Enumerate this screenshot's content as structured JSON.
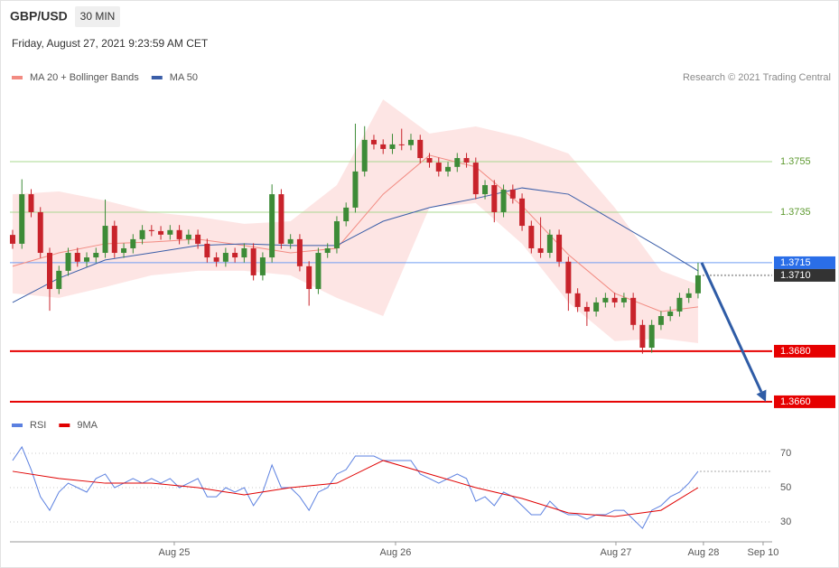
{
  "chart_data": [
    {
      "type": "candlestick",
      "title": "GBP/USD",
      "subtitle": "30 MIN",
      "timestamp": "Friday, August 27, 2021 9:23:59 AM CET",
      "credit": "Research © 2021 Trading Central",
      "up_color": "#3d8b37",
      "down_color": "#c8232b",
      "xlim": [
        -0.29,
        82.0
      ],
      "ylim": [
        1.36564,
        1.37957
      ],
      "xticks": [
        {
          "value": 17.45,
          "label": "Aug 25"
        },
        {
          "value": 41.34,
          "label": "Aug 26"
        },
        {
          "value": 65.13,
          "label": "Aug 27"
        },
        {
          "value": 74.58,
          "label": "Aug 28"
        },
        {
          "value": 81.02,
          "label": "Sep 10"
        }
      ],
      "candles": [
        [
          1.3726,
          1.3728,
          1.37205,
          1.37225
        ],
        [
          1.37225,
          1.3748,
          1.37205,
          1.37421
        ],
        [
          1.37421,
          1.37441,
          1.3733,
          1.3735
        ],
        [
          1.3735,
          1.3737,
          1.37169,
          1.37189
        ],
        [
          1.37189,
          1.37209,
          1.3696,
          1.37046
        ],
        [
          1.37046,
          1.37138,
          1.37026,
          1.37118
        ],
        [
          1.37118,
          1.37209,
          1.37098,
          1.37189
        ],
        [
          1.37189,
          1.37209,
          1.37134,
          1.37154
        ],
        [
          1.37154,
          1.37191,
          1.37134,
          1.37171
        ],
        [
          1.37171,
          1.37209,
          1.37151,
          1.37189
        ],
        [
          1.37189,
          1.374,
          1.37169,
          1.37296
        ],
        [
          1.37296,
          1.37316,
          1.37169,
          1.37189
        ],
        [
          1.37189,
          1.37227,
          1.37169,
          1.37207
        ],
        [
          1.37207,
          1.37263,
          1.37187,
          1.37243
        ],
        [
          1.37243,
          1.37299,
          1.37223,
          1.37279
        ],
        [
          1.37279,
          1.37299,
          1.37255,
          1.37275
        ],
        [
          1.37275,
          1.37295,
          1.37241,
          1.37261
        ],
        [
          1.37261,
          1.37299,
          1.37241,
          1.37279
        ],
        [
          1.37279,
          1.37299,
          1.37223,
          1.37243
        ],
        [
          1.37243,
          1.37281,
          1.37223,
          1.37261
        ],
        [
          1.37261,
          1.37281,
          1.37205,
          1.37225
        ],
        [
          1.37225,
          1.37245,
          1.37151,
          1.37171
        ],
        [
          1.37171,
          1.37191,
          1.37134,
          1.37154
        ],
        [
          1.37154,
          1.37209,
          1.37134,
          1.37189
        ],
        [
          1.37189,
          1.37209,
          1.37151,
          1.37171
        ],
        [
          1.37171,
          1.37227,
          1.37151,
          1.37207
        ],
        [
          1.37207,
          1.37227,
          1.3708,
          1.371
        ],
        [
          1.371,
          1.37191,
          1.3708,
          1.37171
        ],
        [
          1.37171,
          1.3746,
          1.37151,
          1.37421
        ],
        [
          1.37421,
          1.37441,
          1.37205,
          1.37225
        ],
        [
          1.37225,
          1.37263,
          1.37205,
          1.37243
        ],
        [
          1.37243,
          1.37263,
          1.37116,
          1.37136
        ],
        [
          1.37136,
          1.37156,
          1.3698,
          1.37046
        ],
        [
          1.37046,
          1.37209,
          1.37026,
          1.37189
        ],
        [
          1.37189,
          1.37227,
          1.37169,
          1.37207
        ],
        [
          1.37207,
          1.37334,
          1.37187,
          1.37314
        ],
        [
          1.37314,
          1.37388,
          1.37294,
          1.37368
        ],
        [
          1.37368,
          1.377,
          1.37348,
          1.37511
        ],
        [
          1.37511,
          1.3769,
          1.37491,
          1.37636
        ],
        [
          1.37636,
          1.37656,
          1.37598,
          1.37618
        ],
        [
          1.37618,
          1.37638,
          1.3758,
          1.376
        ],
        [
          1.376,
          1.3766,
          1.3758,
          1.37618
        ],
        [
          1.37618,
          1.3768,
          1.37595,
          1.37615
        ],
        [
          1.37615,
          1.3766,
          1.37595,
          1.37636
        ],
        [
          1.37636,
          1.37656,
          1.37544,
          1.37564
        ],
        [
          1.37564,
          1.37584,
          1.37526,
          1.37546
        ],
        [
          1.37546,
          1.37566,
          1.37491,
          1.37511
        ],
        [
          1.37511,
          1.37549,
          1.37491,
          1.37529
        ],
        [
          1.37529,
          1.37584,
          1.37509,
          1.37564
        ],
        [
          1.37564,
          1.37584,
          1.37526,
          1.37546
        ],
        [
          1.37546,
          1.37566,
          1.37401,
          1.37421
        ],
        [
          1.37421,
          1.37477,
          1.37401,
          1.37457
        ],
        [
          1.37457,
          1.37477,
          1.3731,
          1.3735
        ],
        [
          1.3735,
          1.37459,
          1.3733,
          1.37439
        ],
        [
          1.37439,
          1.37459,
          1.37384,
          1.37404
        ],
        [
          1.37404,
          1.37424,
          1.37276,
          1.37296
        ],
        [
          1.37296,
          1.37316,
          1.37187,
          1.37207
        ],
        [
          1.37207,
          1.3733,
          1.37169,
          1.37189
        ],
        [
          1.37189,
          1.37281,
          1.37169,
          1.37261
        ],
        [
          1.37261,
          1.37281,
          1.37134,
          1.37154
        ],
        [
          1.37154,
          1.37174,
          1.3696,
          1.37029
        ],
        [
          1.37029,
          1.37049,
          1.36955,
          1.36975
        ],
        [
          1.36975,
          1.36995,
          1.369,
          1.36957
        ],
        [
          1.36957,
          1.37013,
          1.36937,
          1.36993
        ],
        [
          1.36993,
          1.37031,
          1.36973,
          1.37011
        ],
        [
          1.37011,
          1.37031,
          1.36973,
          1.36993
        ],
        [
          1.36993,
          1.37031,
          1.36973,
          1.37011
        ],
        [
          1.37011,
          1.37031,
          1.36884,
          1.36904
        ],
        [
          1.36904,
          1.36924,
          1.3679,
          1.36814
        ],
        [
          1.36814,
          1.36924,
          1.36794,
          1.36904
        ],
        [
          1.36904,
          1.36959,
          1.36884,
          1.36939
        ],
        [
          1.36939,
          1.36977,
          1.36919,
          1.36957
        ],
        [
          1.36957,
          1.37031,
          1.36937,
          1.37011
        ],
        [
          1.37011,
          1.37049,
          1.36991,
          1.37029
        ],
        [
          1.37029,
          1.3715,
          1.37009,
          1.371
        ]
      ],
      "overlays": {
        "x": [
          0,
          5,
          10,
          15,
          20,
          25,
          30,
          35,
          40,
          45,
          50,
          55,
          60,
          65,
          70,
          74
        ],
        "series": [
          {
            "name": "MA 20 + Bollinger Bands",
            "color": "#f28b82",
            "band_color": "#fde1df",
            "values": [
              1.37136,
              1.37189,
              1.37225,
              1.37232,
              1.37243,
              1.37218,
              1.37189,
              1.37207,
              1.37421,
              1.37575,
              1.37529,
              1.37375,
              1.37182,
              1.37029,
              1.36957,
              1.36975
            ],
            "upper": [
              1.37421,
              1.37432,
              1.37396,
              1.3735,
              1.37332,
              1.37304,
              1.37314,
              1.37457,
              1.37796,
              1.37661,
              1.37689,
              1.37646,
              1.37582,
              1.37368,
              1.37118,
              1.37064
            ],
            "lower": [
              1.37029,
              1.37011,
              1.37054,
              1.371,
              1.37118,
              1.37118,
              1.371,
              1.37011,
              1.36939,
              1.37368,
              1.37386,
              1.37225,
              1.36993,
              1.3684,
              1.3685,
              1.36832
            ]
          },
          {
            "name": "MA 50",
            "color": "#3b5ea8",
            "values": [
              1.36993,
              1.37089,
              1.37161,
              1.37189,
              1.37218,
              1.37225,
              1.37218,
              1.37218,
              1.37314,
              1.37368,
              1.37404,
              1.37446,
              1.37421,
              1.37314,
              1.37207,
              1.37118
            ]
          }
        ]
      },
      "levels": [
        {
          "value": 1.3755,
          "label": "1.3755",
          "color": "#a9d88f",
          "text_color": "#5e9a30",
          "label_style": "text",
          "line": "solid",
          "weight": 1
        },
        {
          "value": 1.3735,
          "label": "1.3735",
          "color": "#a9d88f",
          "text_color": "#5e9a30",
          "label_style": "text",
          "line": "solid",
          "weight": 1
        },
        {
          "value": 1.3715,
          "label": "1.3715",
          "color": "#6f9ef2",
          "tag_color": "#2a6ee8",
          "label_style": "tag",
          "line": "solid",
          "weight": 1
        },
        {
          "value": 1.371,
          "label": "1.3710",
          "color": "#aaaaaa",
          "tag_color": "#333333",
          "label_style": "tag",
          "line": "dotted",
          "weight": 2
        },
        {
          "value": 1.368,
          "label": "1.3680",
          "color": "#e60000",
          "tag_color": "#e60000",
          "label_style": "tag",
          "line": "solid",
          "weight": 2
        },
        {
          "value": 1.366,
          "label": "1.3660",
          "color": "#e60000",
          "tag_color": "#e60000",
          "label_style": "tag",
          "line": "solid",
          "weight": 2
        }
      ],
      "forecast": {
        "target": 1.366,
        "color": "#2f5ca6"
      }
    },
    {
      "type": "line",
      "xlim": [
        -0.29,
        82.0
      ],
      "ylim": [
        23.7,
        76.3
      ],
      "yticks": [
        70,
        50,
        30
      ],
      "grid": true,
      "series": [
        {
          "name": "RSI",
          "color": "#5b80e0",
          "values": [
            65.8,
            73.7,
            60.5,
            44.7,
            36.8,
            47.4,
            52.6,
            50,
            47.4,
            55.3,
            57.9,
            50,
            52.6,
            55.3,
            52.6,
            55.3,
            52.6,
            55.3,
            50,
            52.6,
            55.3,
            44.7,
            44.7,
            50,
            47.4,
            50,
            39.5,
            47.4,
            63.2,
            50,
            50,
            44.7,
            36.8,
            47.4,
            50,
            57.9,
            60.5,
            68.4,
            68.4,
            68.4,
            65.8,
            65.8,
            65.8,
            65.8,
            57.9,
            55.3,
            52.6,
            55.3,
            57.9,
            55.3,
            42.1,
            44.7,
            39.5,
            47.4,
            44.7,
            39.5,
            34.2,
            34.2,
            42.1,
            36.8,
            34.2,
            34.2,
            31.6,
            34.2,
            34.2,
            36.8,
            36.8,
            31.6,
            26.3,
            36.8,
            39.5,
            44.7,
            47.4,
            52.6,
            59.5
          ]
        },
        {
          "name": "9MA",
          "color": "#e00000",
          "x": [
            0,
            5,
            10,
            15,
            20,
            25,
            30,
            35,
            40,
            45,
            50,
            55,
            60,
            65,
            70,
            74
          ],
          "values": [
            59.5,
            55.3,
            52.6,
            52.6,
            50,
            45.8,
            50,
            52.6,
            65.8,
            57.9,
            50,
            43.7,
            35.3,
            33.2,
            36.8,
            50
          ]
        }
      ]
    }
  ]
}
